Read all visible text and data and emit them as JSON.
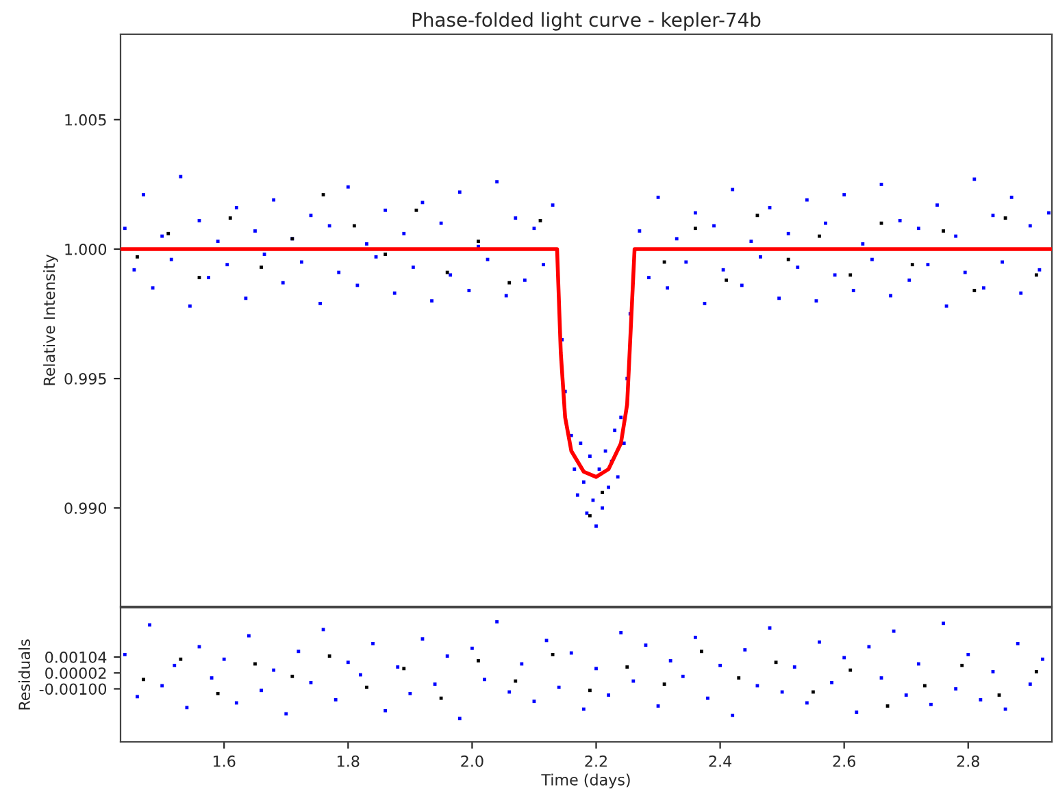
{
  "chart_data": [
    {
      "type": "scatter",
      "title": "Phase-folded light curve - kepler-74b",
      "ylabel": "Relative Intensity",
      "xlim": [
        1.433,
        2.935
      ],
      "ylim": [
        0.9862,
        1.0083
      ],
      "tick_labels": "y",
      "grid": false,
      "legend": false,
      "yticks": [
        {
          "value": 0.99,
          "label": "0.990"
        },
        {
          "value": 0.995,
          "label": "0.995"
        },
        {
          "value": 1.0,
          "label": "1.000"
        },
        {
          "value": 1.005,
          "label": "1.005"
        }
      ],
      "series": [
        {
          "type": "scatter",
          "marker": "square",
          "color": "#0000ff",
          "x": [
            1.44,
            1.455,
            1.47,
            1.485,
            1.5,
            1.515,
            1.53,
            1.545,
            1.56,
            1.575,
            1.59,
            1.605,
            1.62,
            1.635,
            1.65,
            1.665,
            1.68,
            1.695,
            1.71,
            1.725,
            1.74,
            1.755,
            1.77,
            1.785,
            1.8,
            1.815,
            1.83,
            1.845,
            1.86,
            1.875,
            1.89,
            1.905,
            1.92,
            1.935,
            1.95,
            1.965,
            1.98,
            1.995,
            2.01,
            2.025,
            2.04,
            2.055,
            2.07,
            2.085,
            2.1,
            2.115,
            2.13,
            2.145,
            2.15,
            2.16,
            2.165,
            2.17,
            2.175,
            2.18,
            2.185,
            2.19,
            2.195,
            2.2,
            2.205,
            2.21,
            2.215,
            2.22,
            2.225,
            2.23,
            2.235,
            2.24,
            2.245,
            2.25,
            2.255,
            2.27,
            2.285,
            2.3,
            2.315,
            2.33,
            2.345,
            2.36,
            2.375,
            2.39,
            2.405,
            2.42,
            2.435,
            2.45,
            2.465,
            2.48,
            2.495,
            2.51,
            2.525,
            2.54,
            2.555,
            2.57,
            2.585,
            2.6,
            2.615,
            2.63,
            2.645,
            2.66,
            2.675,
            2.69,
            2.705,
            2.72,
            2.735,
            2.75,
            2.765,
            2.78,
            2.795,
            2.81,
            2.825,
            2.84,
            2.855,
            2.87,
            2.885,
            2.9,
            2.915,
            2.93
          ],
          "values": [
            1.0008,
            0.9992,
            1.0021,
            0.9985,
            1.0005,
            0.9996,
            1.0028,
            0.9978,
            1.0011,
            0.9989,
            1.0003,
            0.9994,
            1.0016,
            0.9981,
            1.0007,
            0.9998,
            1.0019,
            0.9987,
            1.0004,
            0.9995,
            1.0013,
            0.9979,
            1.0009,
            0.9991,
            1.0024,
            0.9986,
            1.0002,
            0.9997,
            1.0015,
            0.9983,
            1.0006,
            0.9993,
            1.0018,
            0.998,
            1.001,
            0.999,
            1.0022,
            0.9984,
            1.0001,
            0.9996,
            1.0026,
            0.9982,
            1.0012,
            0.9988,
            1.0008,
            0.9994,
            1.0017,
            0.9965,
            0.9945,
            0.9928,
            0.9915,
            0.9905,
            0.9925,
            0.991,
            0.9898,
            0.992,
            0.9903,
            0.9893,
            0.9915,
            0.99,
            0.9922,
            0.9908,
            0.9918,
            0.993,
            0.9912,
            0.9935,
            0.9925,
            0.995,
            0.9975,
            1.0007,
            0.9989,
            1.002,
            0.9985,
            1.0004,
            0.9995,
            1.0014,
            0.9979,
            1.0009,
            0.9992,
            1.0023,
            0.9986,
            1.0003,
            0.9997,
            1.0016,
            0.9981,
            1.0006,
            0.9993,
            1.0019,
            0.998,
            1.001,
            0.999,
            1.0021,
            0.9984,
            1.0002,
            0.9996,
            1.0025,
            0.9982,
            1.0011,
            0.9988,
            1.0008,
            0.9994,
            1.0017,
            0.9978,
            1.0005,
            0.9991,
            1.0027,
            0.9985,
            1.0013,
            0.9995,
            1.002,
            0.9983,
            1.0009,
            0.9992,
            1.0014
          ]
        },
        {
          "type": "scatter",
          "marker": "square",
          "color": "#000000",
          "x": [
            1.46,
            1.51,
            1.56,
            1.61,
            1.66,
            1.71,
            1.76,
            1.81,
            1.86,
            1.91,
            1.96,
            2.01,
            2.06,
            2.11,
            2.19,
            2.21,
            2.31,
            2.36,
            2.41,
            2.46,
            2.51,
            2.56,
            2.61,
            2.66,
            2.71,
            2.76,
            2.81,
            2.86,
            2.91
          ],
          "values": [
            0.9997,
            1.0006,
            0.9989,
            1.0012,
            0.9993,
            1.0004,
            1.0021,
            1.0009,
            0.9998,
            1.0015,
            0.9991,
            1.0003,
            0.9987,
            1.0011,
            0.9897,
            0.9906,
            0.9995,
            1.0008,
            0.9988,
            1.0013,
            0.9996,
            1.0005,
            0.999,
            1.001,
            0.9994,
            1.0007,
            0.9984,
            1.0012,
            0.999
          ]
        },
        {
          "type": "line",
          "color": "#ff0000",
          "x": [
            1.433,
            2.137,
            2.143,
            2.15,
            2.16,
            2.18,
            2.2,
            2.22,
            2.24,
            2.25,
            2.256,
            2.262,
            2.935
          ],
          "values": [
            1.0,
            1.0,
            0.996,
            0.9935,
            0.9922,
            0.9914,
            0.9912,
            0.9915,
            0.9925,
            0.994,
            0.997,
            1.0,
            1.0
          ]
        }
      ]
    },
    {
      "type": "scatter",
      "xlabel": "Time (days)",
      "ylabel": "Residuals",
      "xlim": [
        1.433,
        2.935
      ],
      "ylim": [
        -0.0044,
        0.0042
      ],
      "grid": false,
      "legend": false,
      "xticks": [
        {
          "value": 1.6,
          "label": "1.6"
        },
        {
          "value": 1.8,
          "label": "1.8"
        },
        {
          "value": 2.0,
          "label": "2.0"
        },
        {
          "value": 2.2,
          "label": "2.2"
        },
        {
          "value": 2.4,
          "label": "2.4"
        },
        {
          "value": 2.6,
          "label": "2.6"
        },
        {
          "value": 2.8,
          "label": "2.8"
        }
      ],
      "yticks": [
        {
          "value": -0.001,
          "label": "-0.00100"
        },
        {
          "value": 2e-05,
          "label": "0.00002"
        },
        {
          "value": 0.00104,
          "label": "0.00104"
        }
      ],
      "series": [
        {
          "type": "scatter",
          "marker": "square",
          "color": "#0000ff",
          "x": [
            1.44,
            1.46,
            1.48,
            1.5,
            1.52,
            1.54,
            1.56,
            1.58,
            1.6,
            1.62,
            1.64,
            1.66,
            1.68,
            1.7,
            1.72,
            1.74,
            1.76,
            1.78,
            1.8,
            1.82,
            1.84,
            1.86,
            1.88,
            1.9,
            1.92,
            1.94,
            1.96,
            1.98,
            2.0,
            2.02,
            2.04,
            2.06,
            2.08,
            2.1,
            2.12,
            2.14,
            2.16,
            2.18,
            2.2,
            2.22,
            2.24,
            2.26,
            2.28,
            2.3,
            2.32,
            2.34,
            2.36,
            2.38,
            2.4,
            2.42,
            2.44,
            2.46,
            2.48,
            2.5,
            2.52,
            2.54,
            2.56,
            2.58,
            2.6,
            2.62,
            2.64,
            2.66,
            2.68,
            2.7,
            2.72,
            2.74,
            2.76,
            2.78,
            2.8,
            2.82,
            2.84,
            2.86,
            2.88,
            2.9,
            2.92
          ],
          "values": [
            0.0012,
            -0.0015,
            0.0031,
            -0.0008,
            0.0005,
            -0.0022,
            0.0017,
            -0.0003,
            0.0009,
            -0.0019,
            0.0024,
            -0.0011,
            0.0002,
            -0.0026,
            0.0014,
            -0.0006,
            0.0028,
            -0.0017,
            0.0007,
            -0.0001,
            0.0019,
            -0.0024,
            0.0004,
            -0.0013,
            0.0022,
            -0.0007,
            0.0011,
            -0.0029,
            0.0016,
            -0.0004,
            0.0033,
            -0.0012,
            0.0006,
            -0.0018,
            0.0021,
            -0.0009,
            0.0013,
            -0.0023,
            0.0003,
            -0.0014,
            0.0026,
            -0.0005,
            0.0018,
            -0.0021,
            0.0008,
            -0.0002,
            0.0023,
            -0.0016,
            0.0005,
            -0.0027,
            0.0015,
            -0.0008,
            0.0029,
            -0.0012,
            0.0004,
            -0.0019,
            0.002,
            -0.0006,
            0.001,
            -0.0025,
            0.0017,
            -0.0003,
            0.0027,
            -0.0014,
            0.0006,
            -0.002,
            0.0032,
            -0.001,
            0.0012,
            -0.0017,
            0.0001,
            -0.0023,
            0.0019,
            -0.0007,
            0.0009
          ]
        },
        {
          "type": "scatter",
          "marker": "square",
          "color": "#000000",
          "x": [
            1.47,
            1.53,
            1.59,
            1.65,
            1.71,
            1.77,
            1.83,
            1.89,
            1.95,
            2.01,
            2.07,
            2.13,
            2.19,
            2.25,
            2.31,
            2.37,
            2.43,
            2.49,
            2.55,
            2.61,
            2.67,
            2.73,
            2.79,
            2.85,
            2.91
          ],
          "values": [
            -0.0004,
            0.0009,
            -0.0013,
            0.0006,
            -0.0002,
            0.0011,
            -0.0009,
            0.0003,
            -0.0016,
            0.0008,
            -0.0005,
            0.0012,
            -0.0011,
            0.0004,
            -0.0007,
            0.0014,
            -0.0003,
            0.0007,
            -0.0012,
            0.0002,
            -0.0021,
            -0.0008,
            0.0005,
            -0.0014,
            0.0001
          ]
        }
      ]
    }
  ]
}
